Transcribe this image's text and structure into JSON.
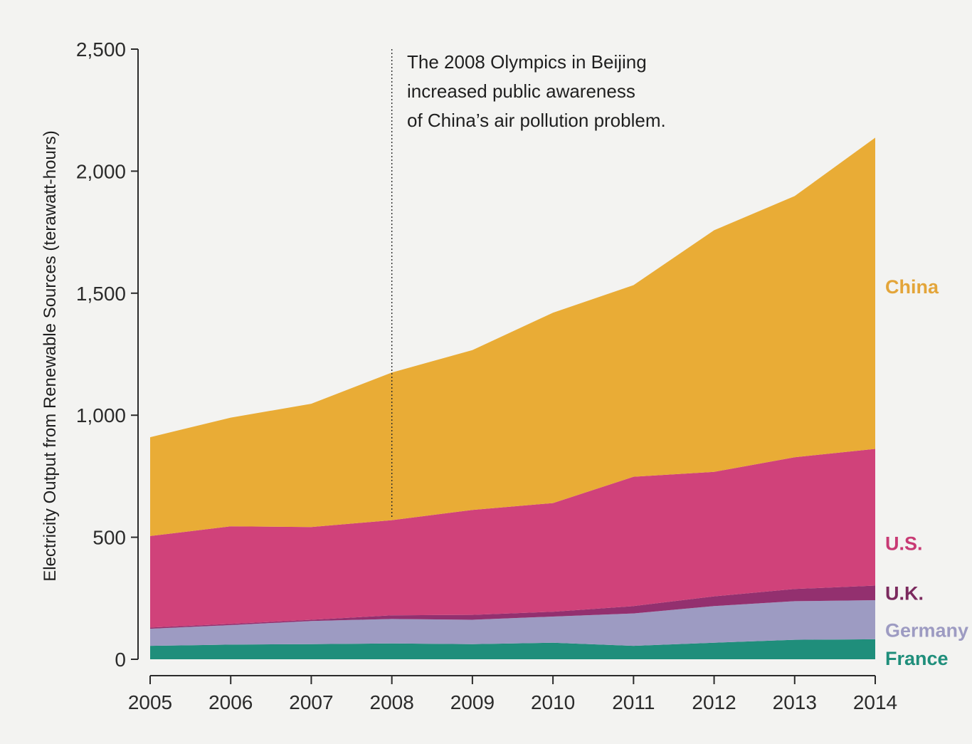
{
  "chart_data": {
    "type": "area",
    "stacked": true,
    "title": "",
    "xlabel": "",
    "ylabel": "Electricity Output from Renewable Sources (terawatt-hours)",
    "x": [
      2005,
      2006,
      2007,
      2008,
      2009,
      2010,
      2011,
      2012,
      2013,
      2014
    ],
    "x_tick_labels": [
      "2005",
      "2006",
      "2007",
      "2008",
      "2009",
      "2010",
      "2011",
      "2012",
      "2013",
      "2014"
    ],
    "ylim": [
      0,
      2500
    ],
    "y_ticks": [
      0,
      500,
      1000,
      1500,
      2000,
      2500
    ],
    "y_tick_labels": [
      "0",
      "500",
      "1,000",
      "1,500",
      "2,000",
      "2,500"
    ],
    "grid": false,
    "series": [
      {
        "name": "France",
        "color": "#1f8e7b",
        "values": [
          55,
          60,
          62,
          65,
          62,
          68,
          55,
          68,
          80,
          82
        ]
      },
      {
        "name": "Germany",
        "color": "#9d9bc2",
        "values": [
          70,
          80,
          95,
          100,
          100,
          107,
          133,
          150,
          158,
          160
        ]
      },
      {
        "name": "U.K.",
        "color": "#93306f",
        "values": [
          5,
          5,
          5,
          15,
          20,
          20,
          30,
          40,
          50,
          60
        ]
      },
      {
        "name": "U.S.",
        "color": "#d0427a",
        "values": [
          375,
          400,
          380,
          390,
          430,
          445,
          530,
          510,
          540,
          560
        ]
      },
      {
        "name": "China",
        "color": "#e9ac36",
        "values": [
          405,
          445,
          505,
          605,
          655,
          780,
          785,
          990,
          1070,
          1275
        ]
      }
    ],
    "annotation": {
      "x": 2008,
      "lines": [
        "The 2008 Olympics in Beijing",
        "increased public awareness",
        "of China’s air pollution problem."
      ]
    }
  }
}
